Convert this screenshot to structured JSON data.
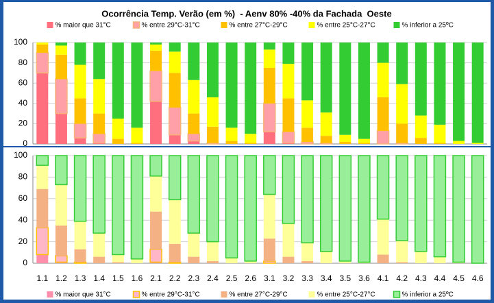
{
  "chart_data": [
    {
      "type": "stacked_bar",
      "title": "Ocorrência Temp. Verão (em %)  - Aenv 80% -40% da Fachada  Oeste",
      "ylim": [
        0,
        100
      ],
      "yticks": [
        0,
        20,
        40,
        60,
        80,
        100
      ],
      "grid": true,
      "legend": "top",
      "series": [
        {
          "name": "% maior que 31°C",
          "color": "#ff6f7d",
          "values": [
            70,
            30,
            6,
            1,
            0,
            0,
            42,
            9,
            3,
            0,
            0,
            0,
            12,
            1,
            0,
            0,
            0,
            0,
            0,
            0,
            0,
            0,
            0,
            0
          ]
        },
        {
          "name": "% entre 29°C-31°C",
          "color": "#ff9fa8",
          "edgecolor": "#f7b37a",
          "values": [
            20,
            34,
            14,
            9,
            0,
            0,
            30,
            27,
            7,
            1,
            0,
            0,
            28,
            11,
            2,
            1,
            0,
            0,
            13,
            1,
            0,
            0,
            0,
            0
          ]
        },
        {
          "name": "% entre 27°C-29°C",
          "color": "#ffc000",
          "values": [
            8,
            24,
            25,
            20,
            5,
            1,
            20,
            34,
            20,
            16,
            3,
            1,
            35,
            33,
            14,
            7,
            2,
            1,
            33,
            19,
            6,
            1,
            0,
            0
          ]
        },
        {
          "name": "% entre 25°C-27°C",
          "color": "#ffff00",
          "values": [
            2,
            9,
            33,
            34,
            20,
            15,
            6,
            21,
            33,
            29,
            13,
            9,
            18,
            34,
            27,
            23,
            7,
            4,
            34,
            39,
            22,
            18,
            3,
            1
          ]
        },
        {
          "name": "% inferior a 25ºC",
          "color": "#33cc33",
          "values": [
            0,
            3,
            22,
            36,
            75,
            84,
            2,
            9,
            37,
            54,
            84,
            90,
            7,
            21,
            57,
            69,
            91,
            95,
            20,
            41,
            72,
            81,
            97,
            99
          ]
        }
      ]
    },
    {
      "type": "stacked_bar",
      "categories": [
        "1.1",
        "1.2",
        "1.3",
        "1.4",
        "1.5",
        "1.6",
        "2.1",
        "2.2",
        "2.3",
        "2.4",
        "2.5",
        "2.6",
        "3.1",
        "3.2",
        "3.3",
        "3.4",
        "3.5",
        "3.6",
        "4.1",
        "4.2",
        "4.3",
        "4.4",
        "4.5",
        "4.6"
      ],
      "ylim": [
        0,
        100
      ],
      "yticks": [
        0,
        20,
        40,
        60,
        80,
        100
      ],
      "grid": true,
      "legend": "bottom",
      "series": [
        {
          "name": "% maior que 31°C",
          "color": "#ff8fab",
          "values": [
            8,
            1,
            0,
            0,
            0,
            0,
            1,
            0,
            0,
            0,
            0,
            0,
            0,
            0,
            0,
            0,
            0,
            0,
            0,
            0,
            0,
            0,
            0,
            0
          ]
        },
        {
          "name": "% entre 29°C-31°C",
          "color": "#ffb6c6",
          "edgecolor": "#ffc000",
          "values": [
            25,
            6,
            1,
            0,
            0,
            0,
            12,
            1,
            0,
            0,
            0,
            0,
            2,
            0,
            0,
            0,
            0,
            0,
            0,
            0,
            0,
            0,
            0,
            0
          ]
        },
        {
          "name": "% entre 27°C-29°C",
          "color": "#f4b183",
          "values": [
            36,
            28,
            12,
            6,
            1,
            0,
            35,
            17,
            6,
            2,
            0,
            0,
            21,
            6,
            2,
            0,
            0,
            0,
            8,
            1,
            0,
            0,
            0,
            0
          ]
        },
        {
          "name": "% entre 25°C-27°C",
          "color": "#ffff99",
          "values": [
            22,
            38,
            26,
            22,
            7,
            4,
            33,
            41,
            22,
            18,
            5,
            2,
            41,
            31,
            17,
            11,
            2,
            1,
            33,
            20,
            11,
            6,
            1,
            0
          ]
        },
        {
          "name": "% inferior a 25ºC",
          "color": "#99ee99",
          "edgecolor": "#33cc33",
          "values": [
            9,
            27,
            61,
            72,
            92,
            96,
            19,
            41,
            72,
            80,
            95,
            98,
            36,
            63,
            81,
            89,
            98,
            99,
            59,
            79,
            89,
            94,
            99,
            100
          ]
        }
      ]
    }
  ]
}
